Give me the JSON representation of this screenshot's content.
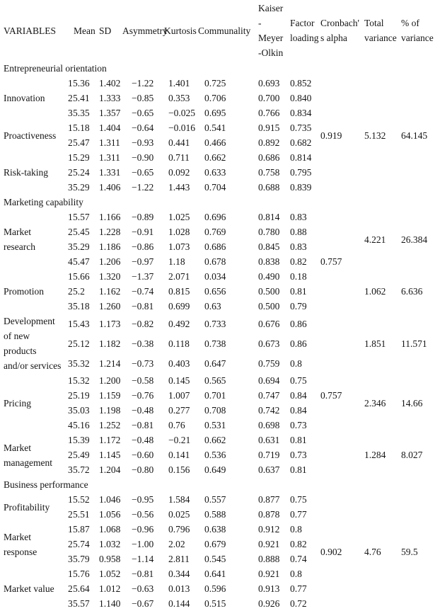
{
  "table": {
    "columns": [
      {
        "id": "variables",
        "label": "VARIABLES",
        "span": 1
      },
      {
        "id": "mean",
        "label": "Mean",
        "span": 2
      },
      {
        "id": "sd",
        "label": "SD",
        "span": 1
      },
      {
        "id": "asymmetry",
        "label": "Asymmetry",
        "span": 1
      },
      {
        "id": "kurtosis",
        "label": "Kurtosis",
        "span": 1
      },
      {
        "id": "communality",
        "label": "Communality",
        "span": 1
      },
      {
        "id": "kmo",
        "label": "Kaiser\n-\nMeyer\n-Olkin",
        "span": 1
      },
      {
        "id": "factor-loading",
        "label": "Factor\nloading",
        "span": 1
      },
      {
        "id": "cronbachs-alpha",
        "label": "Cronbach'\ns alpha",
        "span": 1
      },
      {
        "id": "total-variance",
        "label": "Total\nvariance",
        "span": 1
      },
      {
        "id": "pct-variance",
        "label": "% of\nvariance",
        "span": 1
      }
    ],
    "row_columns": [
      "item",
      "mean",
      "sd",
      "asymmetry",
      "kurtosis",
      "communality",
      "kmo",
      "factor_loading"
    ]
  },
  "sections": [
    {
      "title": "Entrepreneurial orientation",
      "groups": [
        {
          "name": "Innovation",
          "rows": [
            [
              "1",
              "5.36",
              "1.402",
              "−1.22",
              "1.401",
              "0.725",
              "0.693",
              "0.852"
            ],
            [
              "2",
              "5.41",
              "1.333",
              "−0.85",
              "0.353",
              "0.706",
              "0.700",
              "0.840"
            ],
            [
              "3",
              "5.35",
              "1.357",
              "−0.65",
              "−0.025",
              "0.695",
              "0.766",
              "0.834"
            ]
          ]
        },
        {
          "name": "Proactiveness",
          "rows": [
            [
              "1",
              "5.18",
              "1.404",
              "−0.64",
              "−0.016",
              "0.541",
              "0.915",
              "0.735"
            ],
            [
              "2",
              "5.47",
              "1.311",
              "−0.93",
              "0.441",
              "0.466",
              "0.892",
              "0.682"
            ]
          ]
        },
        {
          "name": "Risk-taking",
          "rows": [
            [
              "1",
              "5.29",
              "1.311",
              "−0.90",
              "0.711",
              "0.662",
              "0.686",
              "0.814"
            ],
            [
              "2",
              "5.24",
              "1.331",
              "−0.65",
              "0.092",
              "0.633",
              "0.758",
              "0.795"
            ],
            [
              "3",
              "5.29",
              "1.406",
              "−1.22",
              "1.443",
              "0.704",
              "0.688",
              "0.839"
            ]
          ]
        }
      ],
      "alpha": [
        {
          "start": 0,
          "span": 8,
          "value": "0.919"
        }
      ],
      "total": [
        {
          "start": 0,
          "span": 8,
          "value": "5.132"
        }
      ],
      "pct": [
        {
          "start": 0,
          "span": 8,
          "value": "64.145"
        }
      ]
    },
    {
      "title": "Marketing capability",
      "groups": [
        {
          "name": "Market\nresearch",
          "rows": [
            [
              "1",
              "5.57",
              "1.166",
              "−0.89",
              "1.025",
              "0.696",
              "0.814",
              "0.83"
            ],
            [
              "2",
              "5.45",
              "1.228",
              "−0.91",
              "1.028",
              "0.769",
              "0.780",
              "0.88"
            ],
            [
              "3",
              "5.29",
              "1.186",
              "−0.86",
              "1.073",
              "0.686",
              "0.845",
              "0.83"
            ],
            [
              "4",
              "5.47",
              "1.206",
              "−0.97",
              "1.18",
              "0.678",
              "0.838",
              "0.82"
            ]
          ]
        },
        {
          "name": "Promotion",
          "rows": [
            [
              "1",
              "5.66",
              "1.320",
              "−1.37",
              "2.071",
              "0.034",
              "0.490",
              "0.18"
            ],
            [
              "2",
              "5.2",
              "1.162",
              "−0.74",
              "0.815",
              "0.656",
              "0.500",
              "0.81"
            ],
            [
              "3",
              "5.18",
              "1.260",
              "−0.81",
              "0.699",
              "0.63",
              "0.500",
              "0.79"
            ]
          ]
        },
        {
          "name": "Development\nof new\nproducts\nand/or services",
          "rows": [
            [
              "1",
              "5.43",
              "1.173",
              "−0.82",
              "0.492",
              "0.733",
              "0.676",
              "0.86"
            ],
            [
              "2",
              "5.12",
              "1.182",
              "−0.38",
              "0.118",
              "0.738",
              "0.673",
              "0.86"
            ],
            [
              "3",
              "5.32",
              "1.214",
              "−0.73",
              "0.403",
              "0.647",
              "0.759",
              "0.8"
            ]
          ]
        },
        {
          "name": "Pricing",
          "rows": [
            [
              "1",
              "5.32",
              "1.200",
              "−0.58",
              "0.145",
              "0.565",
              "0.694",
              "0.75"
            ],
            [
              "2",
              "5.19",
              "1.159",
              "−0.76",
              "1.007",
              "0.701",
              "0.747",
              "0.84"
            ],
            [
              "3",
              "5.03",
              "1.198",
              "−0.48",
              "0.277",
              "0.708",
              "0.742",
              "0.84"
            ],
            [
              "4",
              "5.16",
              "1.252",
              "−0.81",
              "0.76",
              "0.531",
              "0.698",
              "0.73"
            ]
          ]
        },
        {
          "name": "Market\nmanagement",
          "rows": [
            [
              "1",
              "5.39",
              "1.172",
              "−0.48",
              "−0.21",
              "0.662",
              "0.631",
              "0.81"
            ],
            [
              "2",
              "5.49",
              "1.145",
              "−0.60",
              "0.141",
              "0.536",
              "0.719",
              "0.73"
            ],
            [
              "3",
              "5.72",
              "1.204",
              "−0.80",
              "0.156",
              "0.649",
              "0.637",
              "0.81"
            ]
          ]
        }
      ],
      "alpha": [
        {
          "start": 0,
          "span": 7,
          "value": "0.757"
        },
        {
          "start": 7,
          "span": 10,
          "value": "0.757"
        }
      ],
      "total": [
        {
          "start": 0,
          "span": 4,
          "value": "4.221"
        },
        {
          "start": 4,
          "span": 3,
          "value": "1.062"
        },
        {
          "start": 7,
          "span": 3,
          "value": "1.851"
        },
        {
          "start": 10,
          "span": 4,
          "value": "2.346"
        },
        {
          "start": 14,
          "span": 3,
          "value": "1.284"
        }
      ],
      "pct": [
        {
          "start": 0,
          "span": 4,
          "value": "26.384"
        },
        {
          "start": 4,
          "span": 3,
          "value": "6.636"
        },
        {
          "start": 7,
          "span": 3,
          "value": "11.571"
        },
        {
          "start": 10,
          "span": 4,
          "value": "14.66"
        },
        {
          "start": 14,
          "span": 3,
          "value": "8.027"
        }
      ]
    },
    {
      "title": "Business performance",
      "groups": [
        {
          "name": "Profitability",
          "rows": [
            [
              "1",
              "5.52",
              "1.046",
              "−0.95",
              "1.584",
              "0.557",
              "0.877",
              "0.75"
            ],
            [
              "2",
              "5.51",
              "1.056",
              "−0.56",
              "0.025",
              "0.588",
              "0.878",
              "0.77"
            ]
          ]
        },
        {
          "name": "Market\nresponse",
          "rows": [
            [
              "1",
              "5.87",
              "1.068",
              "−0.96",
              "0.796",
              "0.638",
              "0.912",
              "0.8"
            ],
            [
              "2",
              "5.74",
              "1.032",
              "−1.00",
              "2.02",
              "0.679",
              "0.921",
              "0.82"
            ],
            [
              "3",
              "5.79",
              "0.958",
              "−1.14",
              "2.811",
              "0.545",
              "0.888",
              "0.74"
            ]
          ]
        },
        {
          "name": "Market value",
          "rows": [
            [
              "1",
              "5.76",
              "1.052",
              "−0.81",
              "0.344",
              "0.641",
              "0.921",
              "0.8"
            ],
            [
              "2",
              "5.64",
              "1.012",
              "−0.63",
              "0.013",
              "0.596",
              "0.913",
              "0.77"
            ],
            [
              "3",
              "5.57",
              "1.140",
              "−0.67",
              "0.144",
              "0.515",
              "0.926",
              "0.72"
            ]
          ]
        }
      ],
      "alpha": [
        {
          "start": 0,
          "span": 8,
          "value": "0.902"
        }
      ],
      "total": [
        {
          "start": 0,
          "span": 8,
          "value": "4.76"
        }
      ],
      "pct": [
        {
          "start": 0,
          "span": 8,
          "value": "59.5"
        }
      ]
    }
  ]
}
